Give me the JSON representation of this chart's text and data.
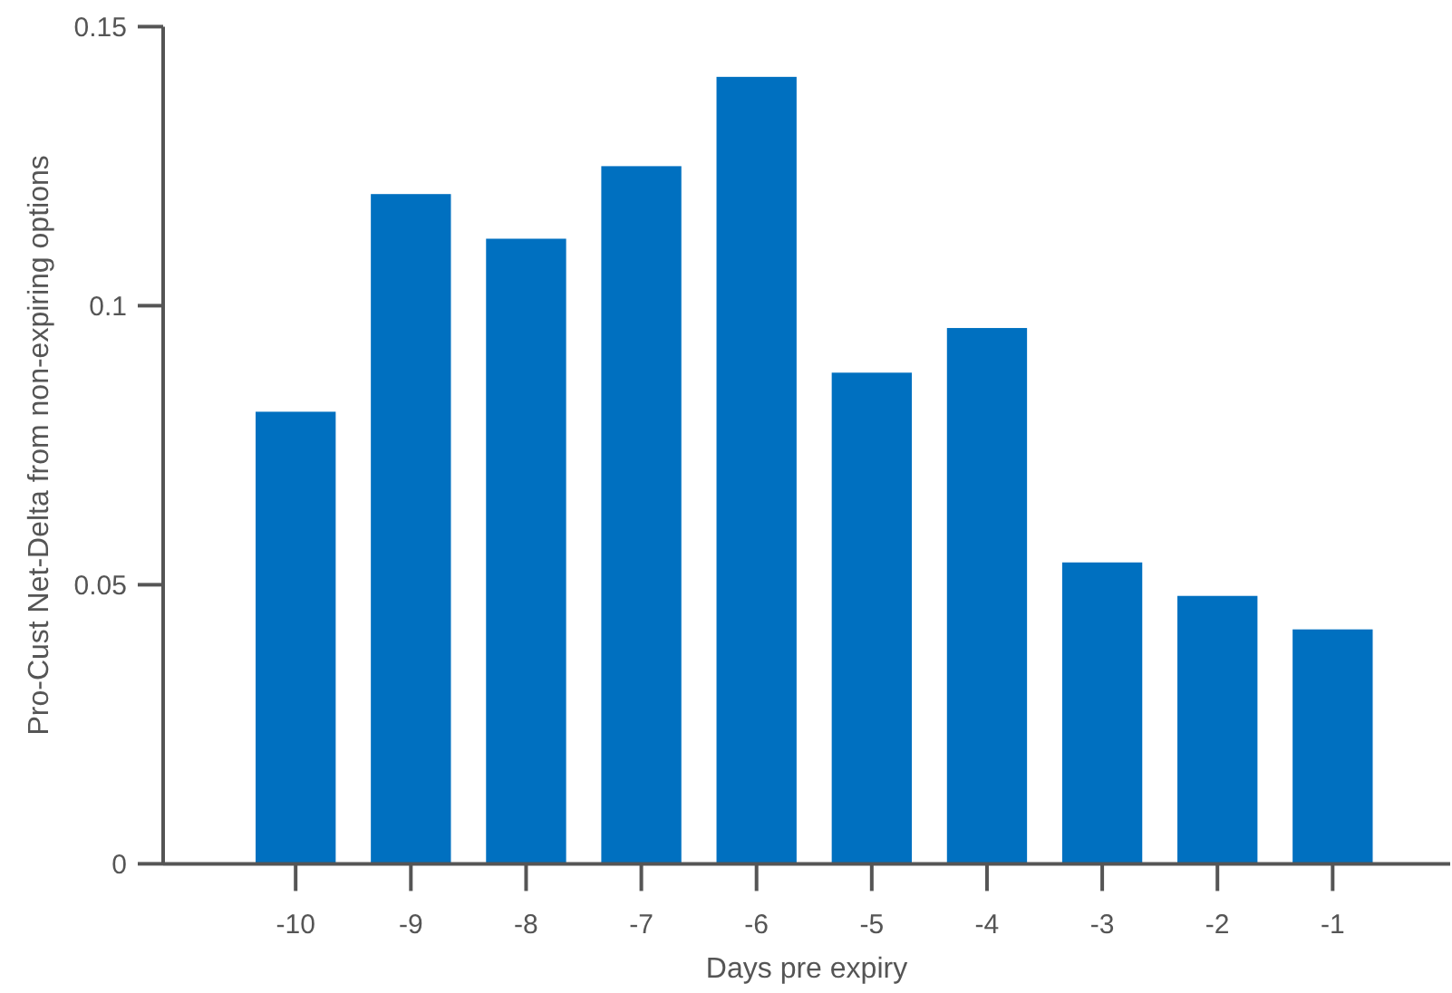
{
  "chart_data": {
    "type": "bar",
    "xlabel": "Days pre expiry",
    "ylabel": "Pro-Cust Net-Delta from non-expiring options",
    "categories": [
      "-10",
      "-9",
      "-8",
      "-7",
      "-6",
      "-5",
      "-4",
      "-3",
      "-2",
      "-1"
    ],
    "values": [
      0.081,
      0.12,
      0.112,
      0.125,
      0.141,
      0.088,
      0.096,
      0.054,
      0.048,
      0.042
    ],
    "color": "#0070c0",
    "ylim": [
      0,
      0.15
    ],
    "yticks": [
      0,
      0.05,
      0.1,
      0.15
    ]
  }
}
